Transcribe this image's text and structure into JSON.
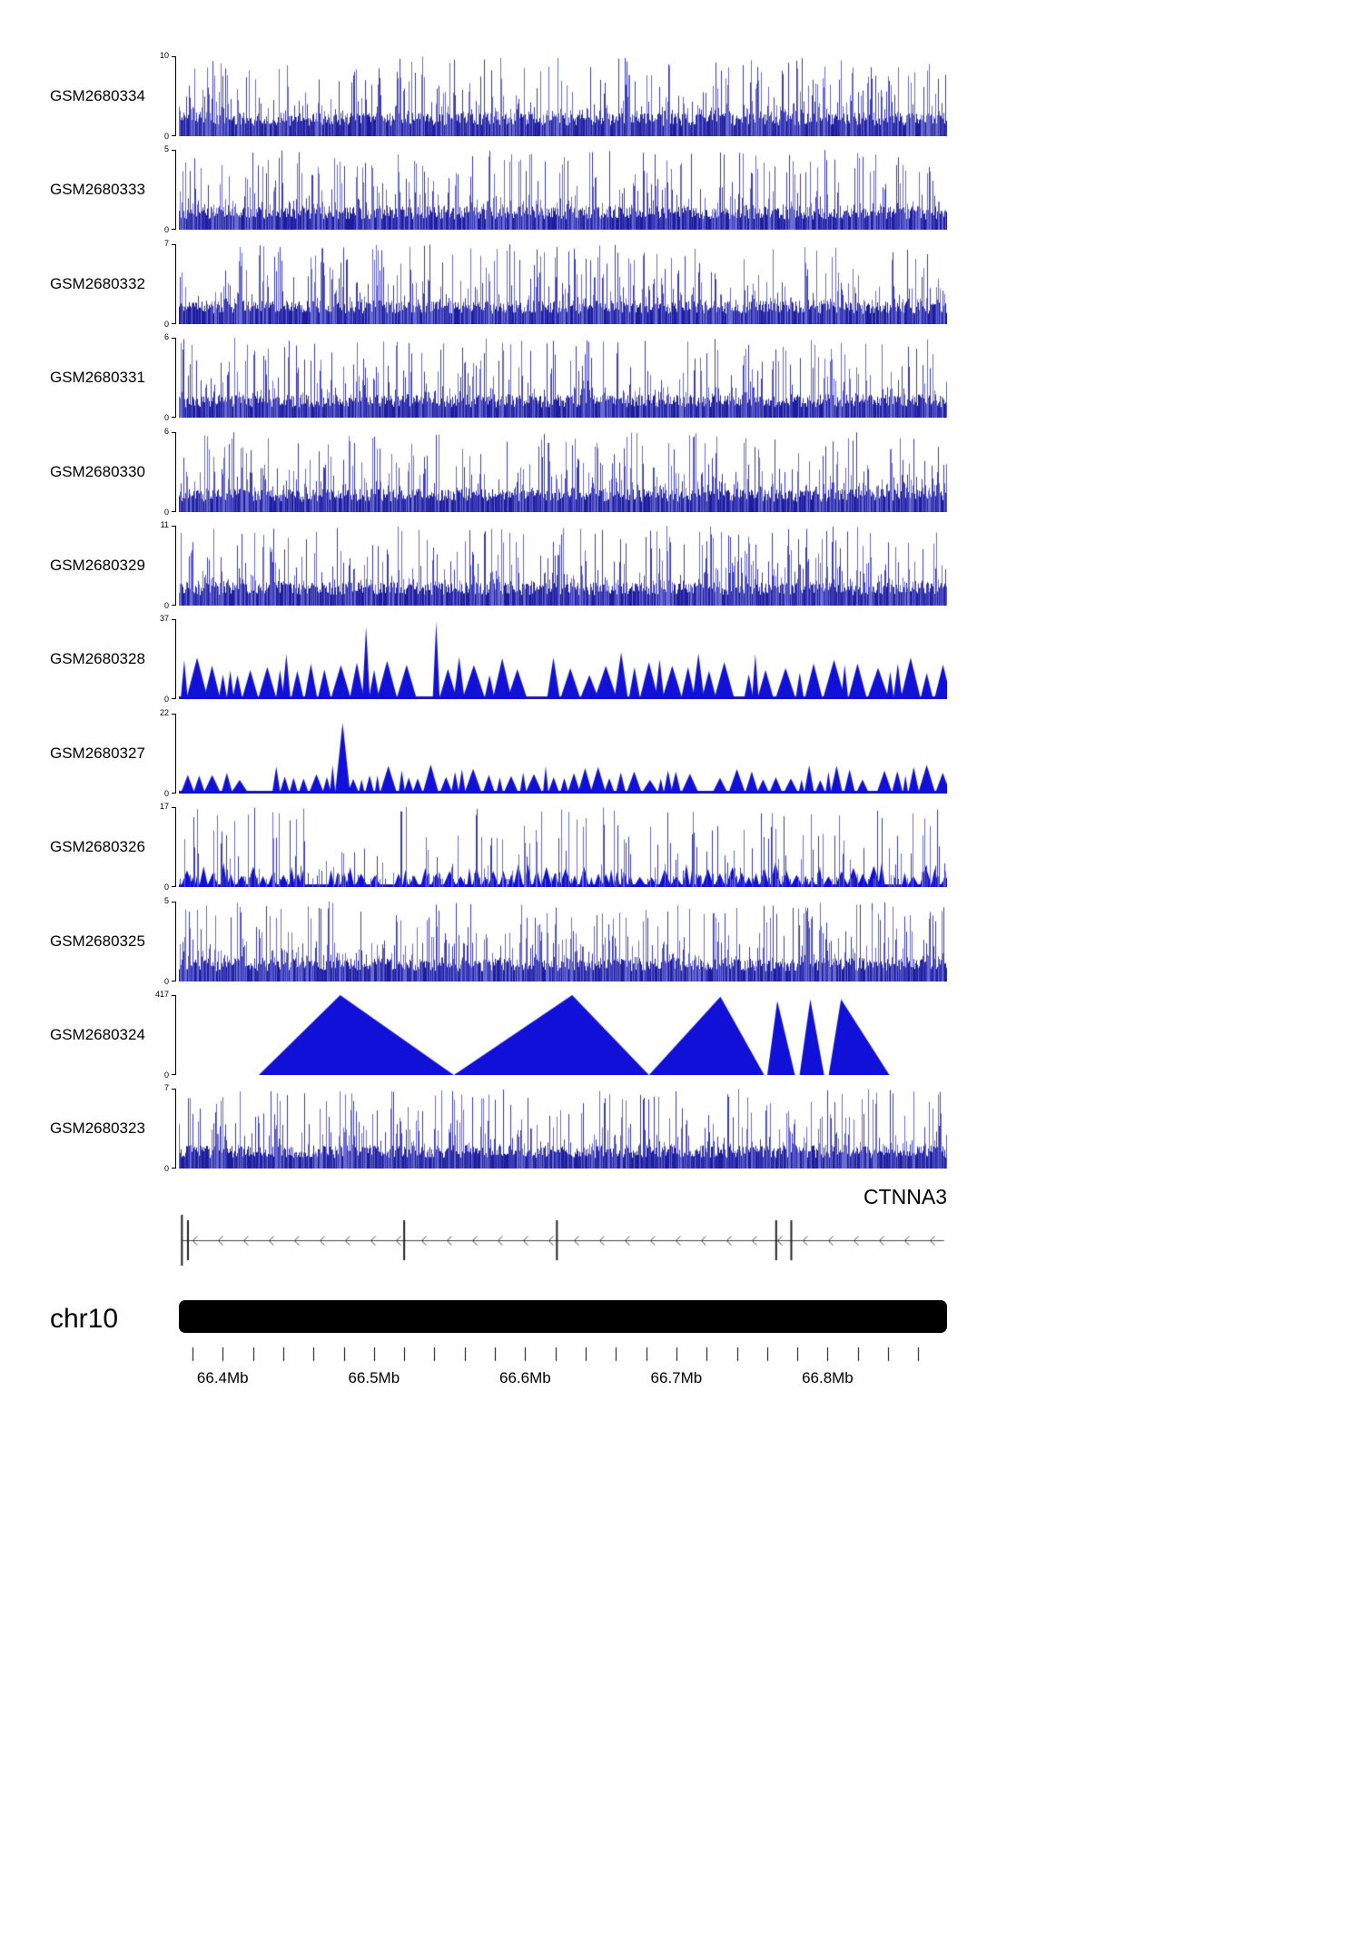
{
  "chart_data": {
    "type": "area",
    "subtype": "genome-coverage-tracks",
    "region": {
      "chromosome": "chr10",
      "start_mb": 66.371,
      "end_mb": 66.879
    },
    "y_zero_label": "0",
    "tracks": [
      {
        "label": "GSM2680334",
        "ymax_label": "10",
        "ylim": [
          0,
          10
        ],
        "style": "spikes",
        "seed": 11
      },
      {
        "label": "GSM2680333",
        "ymax_label": "5",
        "ylim": [
          0,
          5
        ],
        "style": "spikes",
        "seed": 22
      },
      {
        "label": "GSM2680332",
        "ymax_label": "7",
        "ylim": [
          0,
          7
        ],
        "style": "spikes",
        "seed": 33
      },
      {
        "label": "GSM2680331",
        "ymax_label": "6",
        "ylim": [
          0,
          6
        ],
        "style": "spikes",
        "seed": 44
      },
      {
        "label": "GSM2680330",
        "ymax_label": "6",
        "ylim": [
          0,
          6
        ],
        "style": "spikes",
        "seed": 55
      },
      {
        "label": "GSM2680329",
        "ymax_label": "11",
        "ylim": [
          0,
          11
        ],
        "style": "spikes",
        "seed": 66
      },
      {
        "label": "GSM2680328",
        "ymax_label": "37",
        "ylim": [
          0,
          37
        ],
        "style": "peaks",
        "seed": 77,
        "peak_opts": {
          "hMin": 0.3,
          "hMax": 0.6,
          "wMin": 7,
          "wMax": 26,
          "tallProb": 0.04,
          "gapProb": 0.05
        }
      },
      {
        "label": "GSM2680327",
        "ymax_label": "22",
        "ylim": [
          0,
          22
        ],
        "style": "peaks",
        "seed": 88,
        "peak_opts": {
          "hMin": 0.16,
          "hMax": 0.4,
          "wMin": 6,
          "wMax": 20,
          "tallProb": 0.015,
          "gapProb": 0.04
        }
      },
      {
        "label": "GSM2680326",
        "ymax_label": "17",
        "ylim": [
          0,
          17
        ],
        "style": "mixed",
        "seed": 99,
        "peak_opts": {
          "hMin": 0.12,
          "hMax": 0.32,
          "wMin": 5,
          "wMax": 16,
          "tallProb": 0.01,
          "gapProb": 0.04
        }
      },
      {
        "label": "GSM2680325",
        "ymax_label": "5",
        "ylim": [
          0,
          5
        ],
        "style": "spikes",
        "seed": 101
      },
      {
        "label": "GSM2680324",
        "ymax_label": "417",
        "ylim": [
          0,
          417
        ],
        "style": "triangles",
        "seed": 111,
        "triangles": [
          [
            0.104,
            0.21,
            0.358,
            1.0
          ],
          [
            0.358,
            0.512,
            0.612,
            1.0
          ],
          [
            0.612,
            0.705,
            0.762,
            0.98
          ],
          [
            0.766,
            0.779,
            0.802,
            0.93
          ],
          [
            0.808,
            0.822,
            0.84,
            0.95
          ],
          [
            0.846,
            0.862,
            0.925,
            0.95
          ]
        ]
      },
      {
        "label": "GSM2680323",
        "ymax_label": "7",
        "ylim": [
          0,
          7
        ],
        "style": "spikes",
        "seed": 122
      }
    ],
    "gene_track": {
      "name": "CTNNA3",
      "strand": "-",
      "start_mb": 66.373,
      "end_mb": 66.877,
      "exon_marks_mb": [
        66.373,
        66.377,
        66.52,
        66.621,
        66.766,
        66.776
      ]
    },
    "ideogram": {
      "chromosome_label": "chr10",
      "color": "#000000"
    },
    "x_axis": {
      "minor_step_mb": 0.02,
      "first_minor_mb": 66.38,
      "last_minor_mb": 66.87,
      "major_ticks": [
        {
          "mb": 66.4,
          "label": "66.4Mb"
        },
        {
          "mb": 66.5,
          "label": "66.5Mb"
        },
        {
          "mb": 66.6,
          "label": "66.6Mb"
        },
        {
          "mb": 66.7,
          "label": "66.7Mb"
        },
        {
          "mb": 66.8,
          "label": "66.8Mb"
        }
      ]
    },
    "colors": {
      "signal_dark": "#1c1c9c",
      "signal_mid": "#3a3ab8",
      "signal_light": "#6b6bd0",
      "triangle": "#1010d8",
      "gene_line": "#444444",
      "exon": "#222222",
      "axis": "#000000"
    }
  }
}
